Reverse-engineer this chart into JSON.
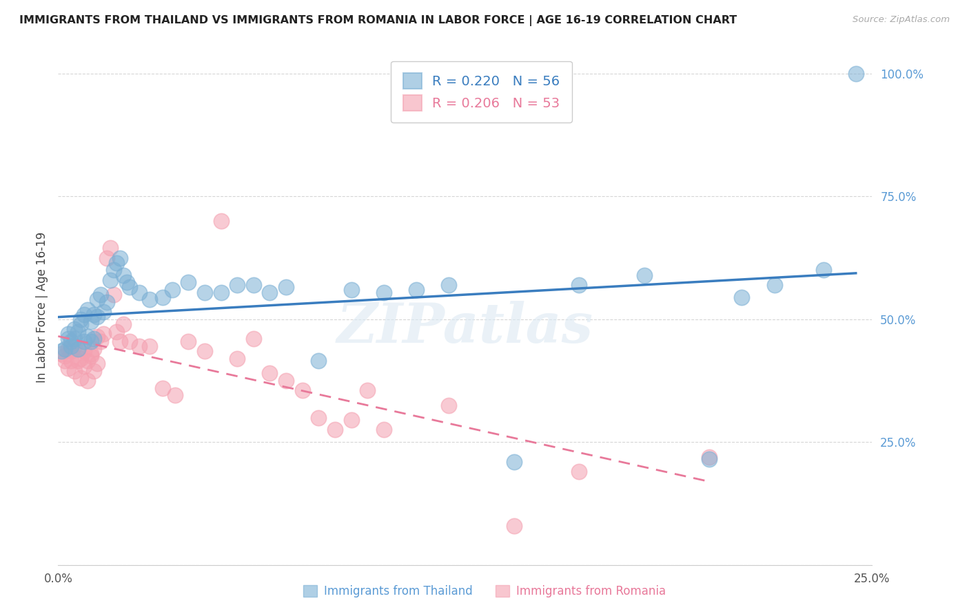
{
  "title": "IMMIGRANTS FROM THAILAND VS IMMIGRANTS FROM ROMANIA IN LABOR FORCE | AGE 16-19 CORRELATION CHART",
  "source": "Source: ZipAtlas.com",
  "ylabel": "In Labor Force | Age 16-19",
  "xlim": [
    0.0,
    0.25
  ],
  "ylim": [
    0.0,
    1.05
  ],
  "yticks": [
    0.0,
    0.25,
    0.5,
    0.75,
    1.0
  ],
  "ytick_labels": [
    "",
    "25.0%",
    "50.0%",
    "75.0%",
    "100.0%"
  ],
  "xticks": [
    0.0,
    0.05,
    0.1,
    0.15,
    0.2,
    0.25
  ],
  "xtick_labels": [
    "0.0%",
    "",
    "",
    "",
    "",
    "25.0%"
  ],
  "thailand_color": "#7bafd4",
  "romania_color": "#f4a0b0",
  "thailand_line_color": "#3a7dbf",
  "romania_line_color": "#e8799a",
  "thailand_R": 0.22,
  "thailand_N": 56,
  "romania_R": 0.206,
  "romania_N": 53,
  "watermark": "ZIPatlas",
  "background_color": "#ffffff",
  "grid_color": "#cccccc",
  "thailand_scatter_x": [
    0.001,
    0.002,
    0.003,
    0.003,
    0.004,
    0.004,
    0.005,
    0.005,
    0.006,
    0.006,
    0.007,
    0.007,
    0.008,
    0.008,
    0.009,
    0.009,
    0.01,
    0.01,
    0.011,
    0.011,
    0.012,
    0.012,
    0.013,
    0.014,
    0.015,
    0.016,
    0.017,
    0.018,
    0.019,
    0.02,
    0.021,
    0.022,
    0.025,
    0.028,
    0.032,
    0.035,
    0.04,
    0.045,
    0.05,
    0.055,
    0.06,
    0.065,
    0.07,
    0.08,
    0.09,
    0.1,
    0.11,
    0.12,
    0.14,
    0.16,
    0.18,
    0.2,
    0.21,
    0.22,
    0.235,
    0.245
  ],
  "thailand_scatter_y": [
    0.435,
    0.44,
    0.46,
    0.47,
    0.445,
    0.455,
    0.48,
    0.46,
    0.475,
    0.44,
    0.5,
    0.49,
    0.455,
    0.51,
    0.465,
    0.52,
    0.495,
    0.455,
    0.51,
    0.46,
    0.54,
    0.505,
    0.55,
    0.515,
    0.535,
    0.58,
    0.6,
    0.615,
    0.625,
    0.59,
    0.575,
    0.565,
    0.555,
    0.54,
    0.545,
    0.56,
    0.575,
    0.555,
    0.555,
    0.57,
    0.57,
    0.555,
    0.565,
    0.415,
    0.56,
    0.555,
    0.56,
    0.57,
    0.21,
    0.57,
    0.59,
    0.215,
    0.545,
    0.57,
    0.6,
    1.0
  ],
  "romania_scatter_x": [
    0.001,
    0.002,
    0.002,
    0.003,
    0.003,
    0.004,
    0.004,
    0.005,
    0.005,
    0.006,
    0.006,
    0.007,
    0.007,
    0.008,
    0.008,
    0.009,
    0.009,
    0.01,
    0.01,
    0.011,
    0.011,
    0.012,
    0.012,
    0.013,
    0.014,
    0.015,
    0.016,
    0.017,
    0.018,
    0.019,
    0.02,
    0.022,
    0.025,
    0.028,
    0.032,
    0.036,
    0.04,
    0.045,
    0.05,
    0.055,
    0.06,
    0.065,
    0.07,
    0.075,
    0.08,
    0.085,
    0.09,
    0.095,
    0.1,
    0.12,
    0.14,
    0.16,
    0.2
  ],
  "romania_scatter_y": [
    0.43,
    0.415,
    0.425,
    0.4,
    0.44,
    0.415,
    0.435,
    0.395,
    0.445,
    0.415,
    0.44,
    0.38,
    0.42,
    0.405,
    0.435,
    0.415,
    0.375,
    0.425,
    0.43,
    0.395,
    0.44,
    0.41,
    0.465,
    0.455,
    0.47,
    0.625,
    0.645,
    0.55,
    0.475,
    0.455,
    0.49,
    0.455,
    0.445,
    0.445,
    0.36,
    0.345,
    0.455,
    0.435,
    0.7,
    0.42,
    0.46,
    0.39,
    0.375,
    0.355,
    0.3,
    0.275,
    0.295,
    0.355,
    0.275,
    0.325,
    0.08,
    0.19,
    0.22
  ]
}
